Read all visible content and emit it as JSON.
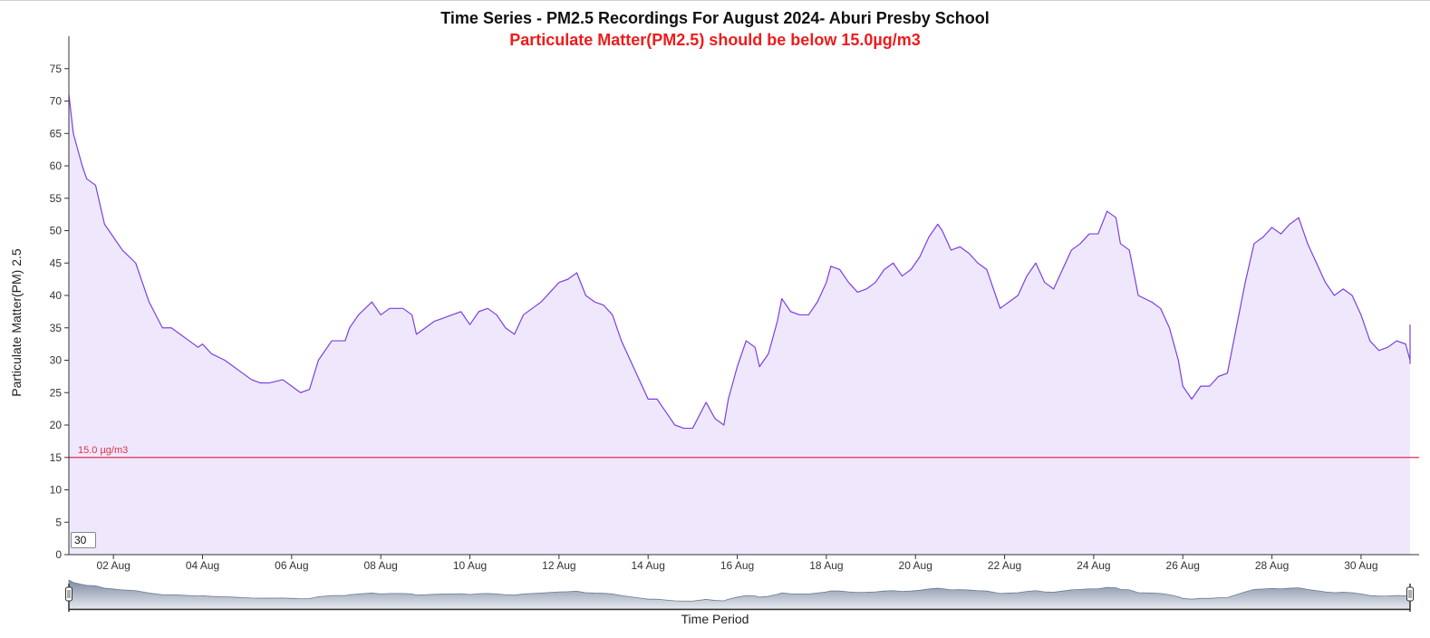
{
  "chart_data": {
    "type": "area",
    "title": "Time Series - PM2.5 Recordings For August 2024- Aburi Presby School",
    "subtitle": "Particulate Matter(PM2.5) should be below 15.0µg/m3",
    "xlabel": "Time Period",
    "ylabel": "Particulate Matter(PM) 2.5",
    "ylim": [
      0,
      80
    ],
    "y_ticks": [
      0,
      5,
      10,
      15,
      20,
      25,
      30,
      35,
      40,
      45,
      50,
      55,
      60,
      65,
      70,
      75
    ],
    "x_tick_labels": [
      "02 Aug",
      "04 Aug",
      "06 Aug",
      "08 Aug",
      "10 Aug",
      "12 Aug",
      "14 Aug",
      "16 Aug",
      "18 Aug",
      "20 Aug",
      "22 Aug",
      "24 Aug",
      "26 Aug",
      "28 Aug",
      "30 Aug"
    ],
    "x_tick_days": [
      2,
      4,
      6,
      8,
      10,
      12,
      14,
      16,
      18,
      20,
      22,
      24,
      26,
      28,
      30
    ],
    "xlim_days": [
      1.0,
      31.1
    ],
    "threshold": {
      "value": 15.0,
      "label": "15.0 µg/m3",
      "color": "#e0304a"
    },
    "series": [
      {
        "color": "#7b3fe4",
        "fill": "#efe8fd",
        "points": [
          [
            1.0,
            71
          ],
          [
            1.1,
            65
          ],
          [
            1.3,
            60
          ],
          [
            1.4,
            58
          ],
          [
            1.6,
            57
          ],
          [
            1.8,
            51
          ],
          [
            2.0,
            49
          ],
          [
            2.2,
            47
          ],
          [
            2.5,
            45
          ],
          [
            2.6,
            43
          ],
          [
            2.8,
            39
          ],
          [
            3.1,
            35
          ],
          [
            3.3,
            35
          ],
          [
            3.5,
            34
          ],
          [
            3.7,
            33
          ],
          [
            3.9,
            32
          ],
          [
            4.0,
            32.5
          ],
          [
            4.2,
            31
          ],
          [
            4.5,
            30
          ],
          [
            4.7,
            29
          ],
          [
            4.9,
            28
          ],
          [
            5.1,
            27
          ],
          [
            5.3,
            26.5
          ],
          [
            5.5,
            26.5
          ],
          [
            5.8,
            27
          ],
          [
            6.0,
            26
          ],
          [
            6.2,
            25
          ],
          [
            6.4,
            25.5
          ],
          [
            6.6,
            30
          ],
          [
            6.9,
            33
          ],
          [
            7.2,
            33
          ],
          [
            7.3,
            35
          ],
          [
            7.5,
            37
          ],
          [
            7.8,
            39
          ],
          [
            8.0,
            37
          ],
          [
            8.2,
            38
          ],
          [
            8.5,
            38
          ],
          [
            8.7,
            37
          ],
          [
            8.8,
            34
          ],
          [
            9.0,
            35
          ],
          [
            9.2,
            36
          ],
          [
            9.4,
            36.5
          ],
          [
            9.6,
            37
          ],
          [
            9.8,
            37.5
          ],
          [
            10.0,
            35.5
          ],
          [
            10.2,
            37.5
          ],
          [
            10.4,
            38
          ],
          [
            10.6,
            37
          ],
          [
            10.8,
            35
          ],
          [
            11.0,
            34
          ],
          [
            11.2,
            37
          ],
          [
            11.4,
            38
          ],
          [
            11.6,
            39
          ],
          [
            11.8,
            40.5
          ],
          [
            12.0,
            42
          ],
          [
            12.2,
            42.5
          ],
          [
            12.4,
            43.5
          ],
          [
            12.6,
            40
          ],
          [
            12.8,
            39
          ],
          [
            13.0,
            38.5
          ],
          [
            13.2,
            37
          ],
          [
            13.4,
            33
          ],
          [
            13.6,
            30
          ],
          [
            13.8,
            27
          ],
          [
            14.0,
            24
          ],
          [
            14.2,
            24
          ],
          [
            14.4,
            22
          ],
          [
            14.6,
            20
          ],
          [
            14.8,
            19.5
          ],
          [
            15.0,
            19.5
          ],
          [
            15.3,
            23.5
          ],
          [
            15.5,
            21
          ],
          [
            15.7,
            20
          ],
          [
            15.8,
            24
          ],
          [
            16.0,
            29
          ],
          [
            16.2,
            33
          ],
          [
            16.4,
            32
          ],
          [
            16.5,
            29
          ],
          [
            16.7,
            31
          ],
          [
            16.9,
            36
          ],
          [
            17.0,
            39.5
          ],
          [
            17.2,
            37.5
          ],
          [
            17.4,
            37
          ],
          [
            17.6,
            37
          ],
          [
            17.8,
            39
          ],
          [
            18.0,
            42
          ],
          [
            18.1,
            44.5
          ],
          [
            18.3,
            44
          ],
          [
            18.5,
            42
          ],
          [
            18.7,
            40.5
          ],
          [
            18.9,
            41
          ],
          [
            19.1,
            42
          ],
          [
            19.3,
            44
          ],
          [
            19.5,
            45
          ],
          [
            19.7,
            43
          ],
          [
            19.9,
            44
          ],
          [
            20.1,
            46
          ],
          [
            20.3,
            49
          ],
          [
            20.5,
            51
          ],
          [
            20.6,
            50
          ],
          [
            20.8,
            47
          ],
          [
            21.0,
            47.5
          ],
          [
            21.2,
            46.5
          ],
          [
            21.4,
            45
          ],
          [
            21.6,
            44
          ],
          [
            21.8,
            40
          ],
          [
            21.9,
            38
          ],
          [
            22.1,
            39
          ],
          [
            22.3,
            40
          ],
          [
            22.5,
            43
          ],
          [
            22.7,
            45
          ],
          [
            22.9,
            42
          ],
          [
            23.1,
            41
          ],
          [
            23.3,
            44
          ],
          [
            23.5,
            47
          ],
          [
            23.7,
            48
          ],
          [
            23.9,
            49.5
          ],
          [
            24.1,
            49.5
          ],
          [
            24.3,
            53
          ],
          [
            24.5,
            52
          ],
          [
            24.6,
            48
          ],
          [
            24.8,
            47
          ],
          [
            25.0,
            40
          ],
          [
            25.3,
            39
          ],
          [
            25.5,
            38
          ],
          [
            25.7,
            35
          ],
          [
            25.9,
            30
          ],
          [
            26.0,
            26
          ],
          [
            26.2,
            24
          ],
          [
            26.4,
            26
          ],
          [
            26.6,
            26
          ],
          [
            26.8,
            27.5
          ],
          [
            27.0,
            28
          ],
          [
            27.2,
            35
          ],
          [
            27.4,
            42
          ],
          [
            27.6,
            48
          ],
          [
            27.8,
            49
          ],
          [
            28.0,
            50.5
          ],
          [
            28.2,
            49.5
          ],
          [
            28.4,
            51
          ],
          [
            28.6,
            52
          ],
          [
            28.8,
            48
          ],
          [
            29.0,
            45
          ],
          [
            29.2,
            42
          ],
          [
            29.4,
            40
          ],
          [
            29.6,
            41
          ],
          [
            29.8,
            40
          ],
          [
            30.0,
            37
          ],
          [
            30.2,
            33
          ],
          [
            30.4,
            31.5
          ],
          [
            30.6,
            32
          ],
          [
            30.8,
            33
          ],
          [
            31.0,
            32.5
          ],
          [
            31.2,
            30
          ],
          [
            31.4,
            29.5
          ],
          [
            31.6,
            33
          ],
          [
            31.8,
            35
          ],
          [
            31.9,
            35.5
          ]
        ]
      }
    ],
    "brush_input_value": "30"
  }
}
